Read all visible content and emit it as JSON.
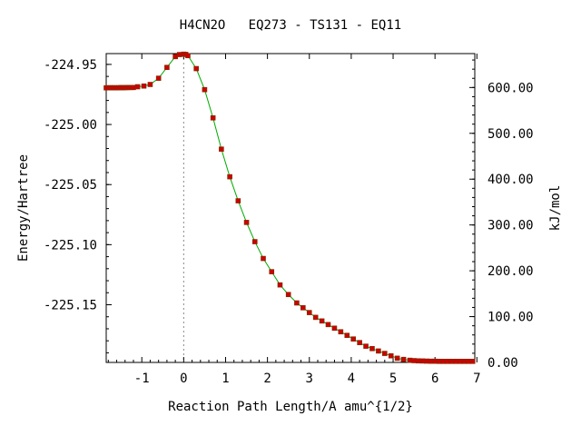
{
  "chart_data": {
    "type": "line",
    "title": "H4CN2O   EQ273 - TS131 - EQ11",
    "xlabel": "Reaction Path Length/A amu^{1/2}",
    "ylabel": "Energy/Hartree",
    "y2label": "kJ/mol",
    "xlim": [
      -1.85,
      6.95
    ],
    "ylim": [
      -225.198,
      -224.941
    ],
    "y2lim": [
      0.0,
      674.0
    ],
    "x_ticks": [
      "-1",
      "0",
      "1",
      "2",
      "3",
      "4",
      "5",
      "6",
      "7"
    ],
    "y_ticks": [
      "-224.95",
      "-225.00",
      "-225.05",
      "-225.10",
      "-225.15"
    ],
    "y2_ticks": [
      "600.00",
      "500.00",
      "400.00",
      "300.00",
      "200.00",
      "100.00",
      "0.00"
    ],
    "ts_marker_x": 0.0,
    "line_color": "#00aa00",
    "marker_color": "#cc0000",
    "series": [
      {
        "x": [
          -1.85,
          -1.8,
          -1.75,
          -1.7,
          -1.65,
          -1.6,
          -1.55,
          -1.5,
          -1.45,
          -1.4,
          -1.35,
          -1.3,
          -1.25,
          -1.2,
          -1.1,
          -0.95,
          -0.8,
          -0.6,
          -0.4,
          -0.2,
          -0.1,
          0.0,
          0.05,
          0.1,
          0.3,
          0.5,
          0.7,
          0.9,
          1.1,
          1.3,
          1.5,
          1.7,
          1.9,
          2.1,
          2.3,
          2.5,
          2.7,
          2.85,
          3.0,
          3.15,
          3.3,
          3.45,
          3.6,
          3.75,
          3.9,
          4.05,
          4.2,
          4.35,
          4.5,
          4.65,
          4.8,
          4.95,
          5.1,
          5.25,
          5.4,
          5.5,
          5.6,
          5.7,
          5.8,
          5.9,
          6.0,
          6.1,
          6.2,
          6.3,
          6.4,
          6.5,
          6.6,
          6.7,
          6.8,
          6.9
        ],
        "y": [
          -224.9695,
          -224.9695,
          -224.9694,
          -224.9695,
          -224.9694,
          -224.9695,
          -224.9694,
          -224.9693,
          -224.9694,
          -224.9693,
          -224.9693,
          -224.9692,
          -224.9692,
          -224.9692,
          -224.9686,
          -224.968,
          -224.9667,
          -224.9615,
          -224.9525,
          -224.9435,
          -224.9418,
          -224.9415,
          -224.9417,
          -224.9427,
          -224.9535,
          -224.971,
          -224.9945,
          -225.0205,
          -225.0435,
          -225.0635,
          -225.0815,
          -225.0975,
          -225.1115,
          -225.1225,
          -225.1335,
          -225.1415,
          -225.1485,
          -225.1525,
          -225.1565,
          -225.1605,
          -225.1635,
          -225.1665,
          -225.1695,
          -225.1725,
          -225.1755,
          -225.1785,
          -225.1815,
          -225.1845,
          -225.1865,
          -225.1885,
          -225.1905,
          -225.1925,
          -225.1945,
          -225.1955,
          -225.1962,
          -225.1965,
          -225.1967,
          -225.1968,
          -225.1969,
          -225.197,
          -225.197,
          -225.1971,
          -225.1971,
          -225.1971,
          -225.1971,
          -225.1971,
          -225.1971,
          -225.1971,
          -225.1971,
          -225.1971
        ]
      }
    ]
  }
}
